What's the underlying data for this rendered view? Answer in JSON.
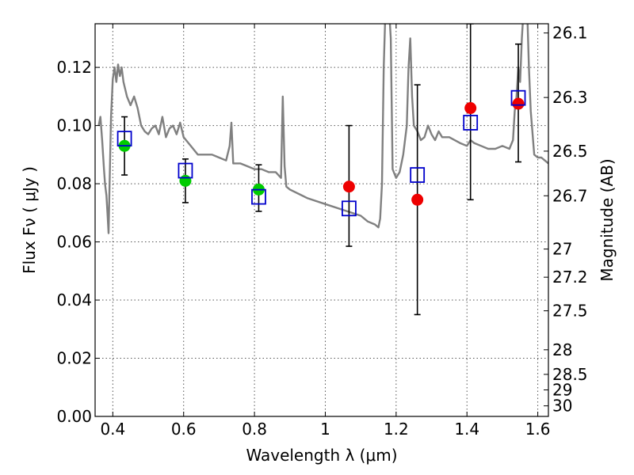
{
  "chart_data": {
    "type": "scatter",
    "xlabel": "Wavelength  λ (μm)",
    "ylabel": "Flux  Fν  ( μJy )",
    "y2label": "Magnitude (AB)",
    "xlim": [
      0.35,
      1.63
    ],
    "ylim": [
      0.0,
      0.135
    ],
    "grid": true,
    "x_ticks": [
      0.4,
      0.6,
      0.8,
      1.0,
      1.2,
      1.4,
      1.6
    ],
    "x_tick_labels": [
      "0.4",
      "0.6",
      "0.8",
      "1",
      "1.2",
      "1.4",
      "1.6"
    ],
    "y_ticks": [
      0.0,
      0.02,
      0.04,
      0.06,
      0.08,
      0.1,
      0.12
    ],
    "y_tick_labels": [
      "0.00",
      "0.02",
      "0.04",
      "0.06",
      "0.08",
      "0.10",
      "0.12"
    ],
    "y2_ticks": [
      {
        "mag": 26.1,
        "label": "26.1"
      },
      {
        "mag": 26.3,
        "label": "26.3"
      },
      {
        "mag": 26.5,
        "label": "26.5"
      },
      {
        "mag": 26.7,
        "label": "26.7"
      },
      {
        "mag": 27.0,
        "label": "27"
      },
      {
        "mag": 27.2,
        "label": "27.2"
      },
      {
        "mag": 27.5,
        "label": "27.5"
      },
      {
        "mag": 28.0,
        "label": "28"
      },
      {
        "mag": 28.5,
        "label": "28.5"
      },
      {
        "mag": 29.0,
        "label": "29"
      },
      {
        "mag": 30.0,
        "label": "30"
      }
    ],
    "colors": {
      "model": "#808080",
      "green": "#00cc00",
      "red": "#ee0000",
      "box": "#0000cc",
      "errorbar": "#000000",
      "grid": "#555555"
    },
    "series": [
      {
        "type": "line",
        "x": [
          0.36,
          0.365,
          0.37,
          0.375,
          0.378,
          0.382,
          0.385,
          0.388,
          0.39,
          0.395,
          0.4,
          0.405,
          0.41,
          0.415,
          0.42,
          0.425,
          0.43,
          0.44,
          0.45,
          0.46,
          0.47,
          0.48,
          0.49,
          0.5,
          0.51,
          0.52,
          0.53,
          0.54,
          0.55,
          0.56,
          0.57,
          0.58,
          0.59,
          0.6,
          0.62,
          0.64,
          0.66,
          0.68,
          0.7,
          0.72,
          0.73,
          0.735,
          0.74,
          0.76,
          0.78,
          0.8,
          0.82,
          0.84,
          0.86,
          0.875,
          0.88,
          0.885,
          0.89,
          0.9,
          0.95,
          1.0,
          1.05,
          1.1,
          1.12,
          1.14,
          1.15,
          1.155,
          1.16,
          1.165,
          1.17,
          1.175,
          1.18,
          1.185,
          1.19,
          1.2,
          1.21,
          1.22,
          1.23,
          1.235,
          1.24,
          1.245,
          1.25,
          1.26,
          1.27,
          1.28,
          1.29,
          1.3,
          1.31,
          1.32,
          1.33,
          1.35,
          1.38,
          1.4,
          1.41,
          1.42,
          1.44,
          1.46,
          1.48,
          1.5,
          1.52,
          1.53,
          1.535,
          1.54,
          1.545,
          1.55,
          1.555,
          1.56,
          1.565,
          1.57,
          1.575,
          1.58,
          1.59,
          1.6,
          1.61,
          1.62,
          1.63
        ],
        "y": [
          0.1,
          0.103,
          0.095,
          0.085,
          0.08,
          0.076,
          0.07,
          0.063,
          0.075,
          0.103,
          0.116,
          0.12,
          0.115,
          0.121,
          0.117,
          0.12,
          0.115,
          0.11,
          0.107,
          0.11,
          0.106,
          0.1,
          0.098,
          0.097,
          0.099,
          0.1,
          0.097,
          0.103,
          0.096,
          0.099,
          0.1,
          0.097,
          0.101,
          0.096,
          0.093,
          0.09,
          0.09,
          0.09,
          0.089,
          0.088,
          0.093,
          0.101,
          0.087,
          0.087,
          0.086,
          0.085,
          0.085,
          0.084,
          0.084,
          0.082,
          0.11,
          0.086,
          0.079,
          0.078,
          0.075,
          0.073,
          0.071,
          0.069,
          0.067,
          0.066,
          0.065,
          0.068,
          0.08,
          0.12,
          0.14,
          0.145,
          0.14,
          0.13,
          0.085,
          0.082,
          0.084,
          0.09,
          0.1,
          0.12,
          0.13,
          0.11,
          0.1,
          0.098,
          0.095,
          0.096,
          0.1,
          0.097,
          0.095,
          0.098,
          0.096,
          0.096,
          0.094,
          0.093,
          0.095,
          0.094,
          0.093,
          0.092,
          0.092,
          0.093,
          0.092,
          0.095,
          0.105,
          0.11,
          0.12,
          0.115,
          0.13,
          0.14,
          0.145,
          0.14,
          0.12,
          0.105,
          0.09,
          0.089,
          0.089,
          0.088,
          0.087
        ]
      },
      {
        "type": "scatter",
        "marker": "circle",
        "color": "green",
        "x": [
          0.433,
          0.605,
          0.812
        ],
        "y": [
          0.093,
          0.081,
          0.078
        ]
      },
      {
        "type": "scatter",
        "marker": "circle",
        "color": "red",
        "x": [
          1.067,
          1.26,
          1.41,
          1.545
        ],
        "y": [
          0.079,
          0.0745,
          0.106,
          0.1075
        ]
      },
      {
        "type": "scatter",
        "marker": "open-square",
        "color": "box",
        "x": [
          0.433,
          0.605,
          0.812,
          1.067,
          1.26,
          1.41,
          1.545
        ],
        "y": [
          0.0955,
          0.0845,
          0.0755,
          0.0715,
          0.083,
          0.101,
          0.1095
        ]
      },
      {
        "type": "errorbar",
        "color": "errorbar",
        "x": [
          0.433,
          0.605,
          0.812,
          1.067,
          1.26,
          1.41,
          1.545
        ],
        "y_low": [
          0.083,
          0.0735,
          0.0705,
          0.0585,
          0.035,
          0.0745,
          0.0875
        ],
        "y_high": [
          0.103,
          0.0885,
          0.0865,
          0.1,
          0.114,
          0.135,
          0.128
        ]
      }
    ]
  }
}
